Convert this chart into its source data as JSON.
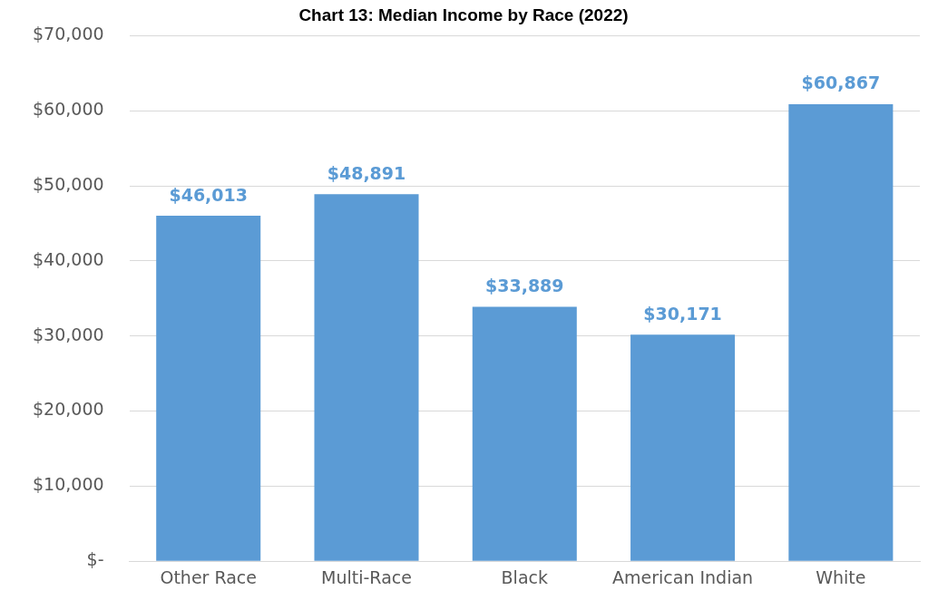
{
  "chart_data": {
    "type": "bar",
    "title": "Chart 13: Median Income by Race (2022)",
    "categories": [
      "Other Race",
      "Multi-Race",
      "Black",
      "American Indian",
      "White"
    ],
    "values": [
      46013,
      48891,
      33889,
      30171,
      60867
    ],
    "value_labels": [
      "$46,013",
      "$48,891",
      "$33,889",
      "$30,171",
      "$60,867"
    ],
    "color": "#5b9bd5",
    "ylim": [
      0,
      70000
    ],
    "yticks": [
      {
        "value": 0,
        "label": "$-"
      },
      {
        "value": 10000,
        "label": "$10,000"
      },
      {
        "value": 20000,
        "label": "$20,000"
      },
      {
        "value": 30000,
        "label": "$30,000"
      },
      {
        "value": 40000,
        "label": "$40,000"
      },
      {
        "value": 50000,
        "label": "$50,000"
      },
      {
        "value": 60000,
        "label": "$60,000"
      },
      {
        "value": 70000,
        "label": "$70,000"
      }
    ],
    "grid": "y",
    "legend": false
  }
}
